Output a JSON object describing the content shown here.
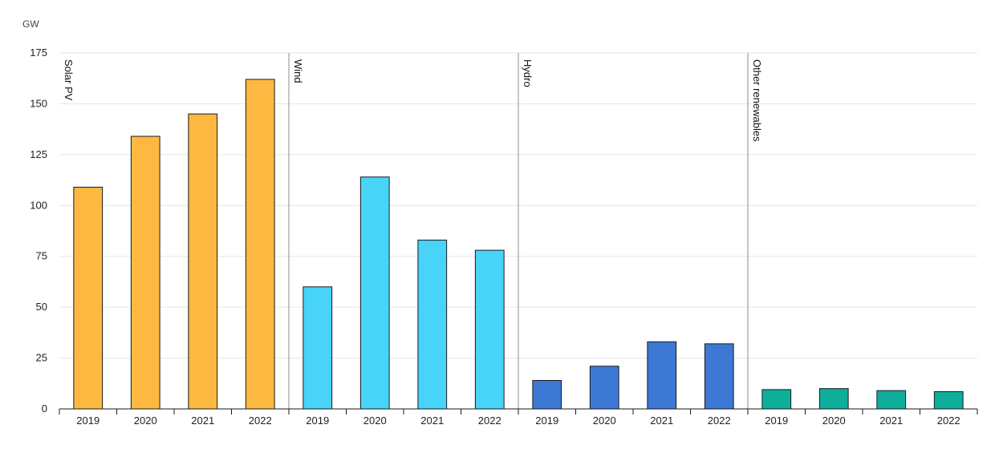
{
  "chart_data": {
    "type": "bar",
    "ylabel": "GW",
    "ylim": [
      0,
      175
    ],
    "yticks": [
      0,
      25,
      50,
      75,
      100,
      125,
      150,
      175
    ],
    "grid": true,
    "groups": [
      {
        "name": "Solar PV",
        "color": "#FDB841",
        "categories": [
          "2019",
          "2020",
          "2021",
          "2022"
        ],
        "values": [
          109,
          134,
          145,
          162
        ]
      },
      {
        "name": "Wind",
        "color": "#48D3F9",
        "categories": [
          "2019",
          "2020",
          "2021",
          "2022"
        ],
        "values": [
          60,
          114,
          83,
          78
        ]
      },
      {
        "name": "Hydro",
        "color": "#3D78D4",
        "categories": [
          "2019",
          "2020",
          "2021",
          "2022"
        ],
        "values": [
          14,
          21,
          33,
          32
        ]
      },
      {
        "name": "Other renewables",
        "color": "#0FAE9B",
        "categories": [
          "2019",
          "2020",
          "2021",
          "2022"
        ],
        "values": [
          9.5,
          10,
          9,
          8.5
        ]
      }
    ]
  }
}
